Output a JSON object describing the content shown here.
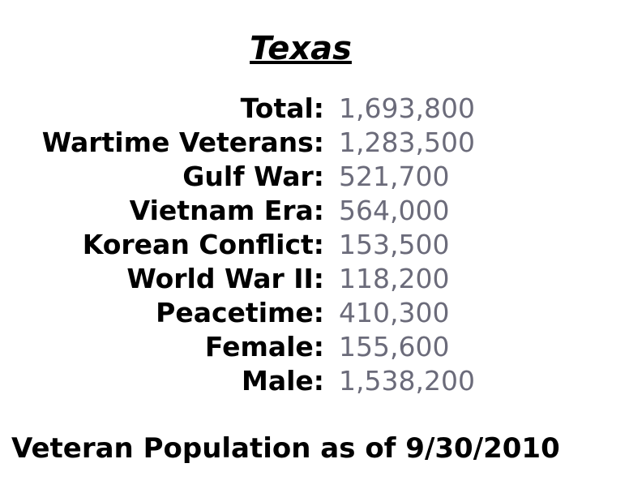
{
  "title": "Texas",
  "stats": [
    {
      "label": "Total:",
      "value": "1,693,800"
    },
    {
      "label": "Wartime Veterans:",
      "value": "1,283,500"
    },
    {
      "label": "Gulf War:",
      "value": "521,700"
    },
    {
      "label": "Vietnam Era:",
      "value": "564,000"
    },
    {
      "label": "Korean Conflict:",
      "value": "153,500"
    },
    {
      "label": "World War II:",
      "value": "118,200"
    },
    {
      "label": "Peacetime:",
      "value": "410,300"
    },
    {
      "label": "Female:",
      "value": "155,600"
    },
    {
      "label": "Male:",
      "value": "1,538,200"
    }
  ],
  "footer": "Veteran Population as of 9/30/2010",
  "colors": {
    "label": "#000000",
    "value": "#6b6b7a"
  }
}
